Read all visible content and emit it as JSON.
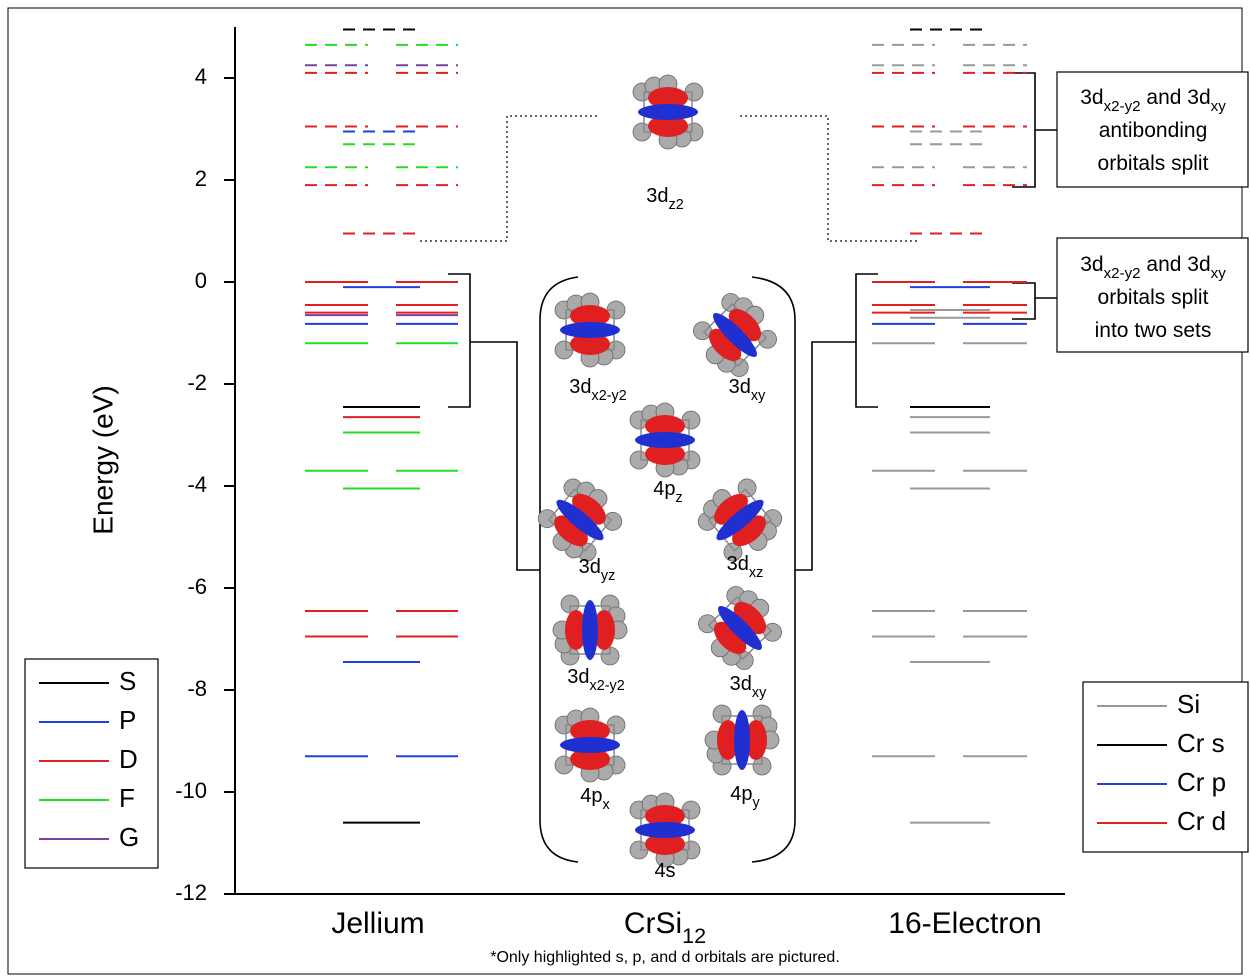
{
  "chart_data": {
    "type": "energy-level",
    "ylabel": "Energy (eV)",
    "ylim": [
      -12,
      5
    ],
    "yticks": [
      -12,
      -10,
      -8,
      -6,
      -4,
      -2,
      0,
      2,
      4
    ],
    "columns": [
      {
        "label": [
          {
            "text": "Jellium"
          }
        ],
        "legend_corner": "lower-left",
        "series": [
          {
            "name": "S",
            "color": "#000000",
            "values": [
              4.95,
              -2.45,
              -10.6
            ],
            "styles": [
              "dashed-single",
              "solid-single",
              "solid-single"
            ]
          },
          {
            "name": "P",
            "color": "#2040e0",
            "values": [
              2.95,
              -0.1,
              -0.82,
              -7.45,
              -9.3
            ],
            "styles": [
              "dashed-single",
              "solid-single",
              "solid-pair",
              "solid-single",
              "solid-pair"
            ]
          },
          {
            "name": "D",
            "color": "#e02020",
            "values": [
              4.1,
              3.05,
              1.9,
              0.95,
              0,
              -0.45,
              -0.6,
              -2.65,
              -6.45,
              -6.95
            ],
            "styles": [
              "dashed-pair",
              "dashed-pair",
              "dashed-pair",
              "dashed-single",
              "solid-pair",
              "solid-pair",
              "solid-pair",
              "solid-single",
              "solid-pair",
              "solid-pair"
            ]
          },
          {
            "name": "F",
            "color": "#22dd22",
            "values": [
              4.65,
              2.7,
              2.25,
              -1.2,
              -2.95,
              -3.7,
              -4.05
            ],
            "styles": [
              "dashed-pair",
              "dashed-single",
              "dashed-pair",
              "solid-pair",
              "solid-single",
              "solid-pair",
              "solid-single"
            ]
          },
          {
            "name": "G",
            "color": "#7f3f9f",
            "values": [
              4.25,
              -0.65
            ],
            "styles": [
              "dashed-pair",
              "solid-pair"
            ]
          }
        ]
      },
      {
        "label": [
          {
            "text": "CrSi"
          },
          {
            "text": "12",
            "sub": true
          }
        ],
        "orbitals": [
          [
            {
              "text": "3d"
            },
            {
              "text": "z2",
              "sub": true
            }
          ],
          [
            {
              "text": "3d"
            },
            {
              "text": "x2-y2",
              "sub": true
            }
          ],
          [
            {
              "text": "3d"
            },
            {
              "text": "xy",
              "sub": true
            }
          ],
          [
            {
              "text": "4p"
            },
            {
              "text": "z",
              "sub": true
            }
          ],
          [
            {
              "text": "3d"
            },
            {
              "text": "yz",
              "sub": true
            }
          ],
          [
            {
              "text": "3d"
            },
            {
              "text": "xz",
              "sub": true
            }
          ],
          [
            {
              "text": "3d"
            },
            {
              "text": "x2-y2",
              "sub": true
            }
          ],
          [
            {
              "text": "3d"
            },
            {
              "text": "xy",
              "sub": true
            }
          ],
          [
            {
              "text": "4p"
            },
            {
              "text": "x",
              "sub": true
            }
          ],
          [
            {
              "text": "4p"
            },
            {
              "text": "y",
              "sub": true
            }
          ],
          [
            {
              "text": "4s"
            }
          ]
        ]
      },
      {
        "label": [
          {
            "text": "16-Electron"
          }
        ],
        "legend_corner": "lower-right",
        "series": [
          {
            "name": "Si",
            "color": "#999999",
            "values": [
              4.65,
              4.25,
              2.95,
              2.7,
              2.25,
              -0.55,
              -0.7,
              -1.2,
              -2.65,
              -2.95,
              -3.7,
              -4.05,
              -6.45,
              -6.95,
              -7.45,
              -9.3,
              -10.6
            ],
            "styles": [
              "dashed-pair",
              "dashed-pair",
              "dashed-single",
              "dashed-single",
              "dashed-pair",
              "solid-single",
              "solid-single",
              "solid-pair",
              "solid-single",
              "solid-single",
              "solid-pair",
              "solid-single",
              "solid-pair",
              "solid-pair",
              "solid-single",
              "solid-pair",
              "solid-single"
            ]
          },
          {
            "name": "Cr s",
            "color": "#000000",
            "values": [
              4.95,
              -2.45
            ],
            "styles": [
              "dashed-single",
              "solid-single"
            ]
          },
          {
            "name": "Cr p",
            "color": "#2040e0",
            "values": [
              -0.1,
              -0.82
            ],
            "styles": [
              "solid-single",
              "solid-pair"
            ]
          },
          {
            "name": "Cr d",
            "color": "#e02020",
            "values": [
              4.1,
              3.05,
              1.9,
              0.95,
              0,
              -0.45,
              -0.6
            ],
            "styles": [
              "dashed-pair",
              "dashed-pair",
              "dashed-pair",
              "dashed-single",
              "solid-pair",
              "solid-pair",
              "solid-pair"
            ]
          }
        ]
      }
    ],
    "annotations": [
      {
        "lines": [
          [
            {
              "text": "3d"
            },
            {
              "text": "x2-y2",
              "sub": true
            },
            {
              "text": " and 3d"
            },
            {
              "text": "xy",
              "sub": true
            }
          ],
          [
            {
              "text": "antibonding"
            }
          ],
          [
            {
              "text": "orbitals split"
            }
          ]
        ]
      },
      {
        "lines": [
          [
            {
              "text": "3d"
            },
            {
              "text": "x2-y2",
              "sub": true
            },
            {
              "text": " and 3d"
            },
            {
              "text": "xy",
              "sub": true
            }
          ],
          [
            {
              "text": "orbitals split"
            }
          ],
          [
            {
              "text": "into two sets"
            }
          ]
        ]
      }
    ],
    "footnote": "*Only highlighted s, p, and d orbitals are pictured."
  }
}
